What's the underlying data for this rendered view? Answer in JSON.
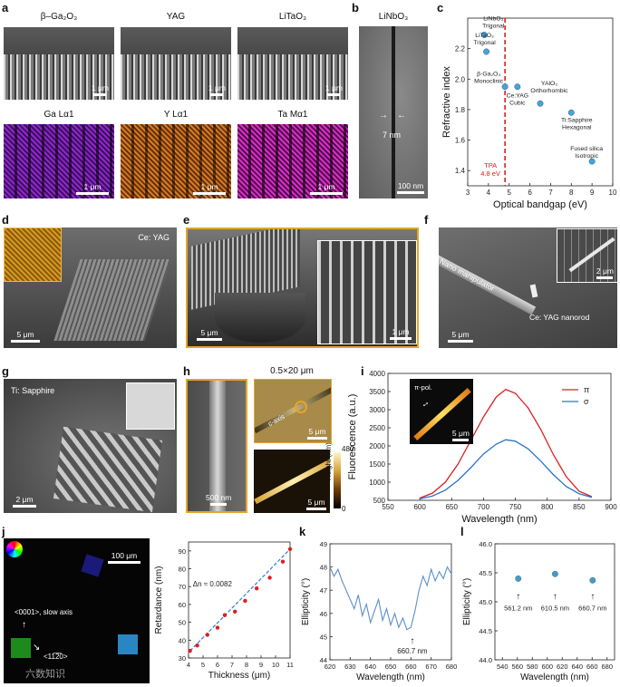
{
  "panel_labels": {
    "a": "a",
    "b": "b",
    "c": "c",
    "d": "d",
    "e": "e",
    "f": "f",
    "g": "g",
    "h": "h",
    "i": "i",
    "j": "j",
    "k": "k",
    "l": "l"
  },
  "panel_a": {
    "titles": [
      "β–Ga₂O₃",
      "YAG",
      "LiTaO₃",
      "Ga Lα1",
      "Y Lα1",
      "Ta Mα1"
    ],
    "scalebar": "1 μm"
  },
  "panel_b": {
    "title": "LiNbO₃",
    "gap_label": "7 nm",
    "scalebar": "100 nm"
  },
  "panel_d": {
    "label": "Ce: YAG",
    "scalebar": "5 μm"
  },
  "panel_e": {
    "scalebar_main": "5 μm",
    "scalebar_inset": "1 μm"
  },
  "panel_f": {
    "manipulator": "Nano manipulator",
    "nanorod": "Ce: YAG nanorod",
    "scalebar_main": "5 μm",
    "scalebar_inset": "2 μm"
  },
  "panel_g": {
    "label": "Ti: Sapphire",
    "scalebar": "2 μm"
  },
  "panel_h": {
    "size": "0.5×20 μm",
    "c_axis": "c-axis",
    "scalebar_sem": "500 nm",
    "scalebar_top": "5 μm",
    "scalebar_bottom": "5 μm",
    "colorbar_title": "Height (nm)",
    "colorbar_max": "480",
    "colorbar_min": "0"
  },
  "panel_i_inset": {
    "label": "π-pol.",
    "scalebar": "5 μm"
  },
  "panel_j_image": {
    "scalebar": "100 μm",
    "slow_axis": "<0001>, slow axis",
    "perp_axis": "<11̅2̅0>"
  },
  "watermark": "六数知识",
  "chart_data": [
    {
      "type": "scatter",
      "panel": "c",
      "xlabel": "Optical bandgap (eV)",
      "ylabel": "Refractive index",
      "xlim": [
        3,
        10
      ],
      "ylim": [
        1.3,
        2.4
      ],
      "xticks": [
        "3",
        "4",
        "5",
        "6",
        "7",
        "8",
        "9",
        "10"
      ],
      "yticks": [
        "1.4",
        "1.6",
        "1.8",
        "2.0",
        "2.2"
      ],
      "points": [
        {
          "x": 3.8,
          "y": 2.29,
          "label": "LiNbO₃ Trigonal"
        },
        {
          "x": 3.9,
          "y": 2.18,
          "label": "LiTaO₃ Trigonal"
        },
        {
          "x": 4.8,
          "y": 1.95,
          "label": "β-Ga₂O₃ Monoclinic"
        },
        {
          "x": 5.4,
          "y": 1.95,
          "label": "Ce:YAG Cubic"
        },
        {
          "x": 6.5,
          "y": 1.84,
          "label": "YAlO₃ Orthorhombic"
        },
        {
          "x": 8.0,
          "y": 1.78,
          "label": "Ti:Sapphire Hexagonal"
        },
        {
          "x": 9.0,
          "y": 1.46,
          "label": "Fused silica Isotropic"
        }
      ],
      "threshold": {
        "x": 4.8,
        "label": "TPA 4.8 eV"
      },
      "colors": {
        "point": "#4aa3d6",
        "threshold": "#d9201f"
      }
    },
    {
      "type": "line",
      "panel": "i",
      "xlabel": "Wavelength (nm)",
      "ylabel": "Fluorescence (a.u.)",
      "xlim": [
        550,
        900
      ],
      "ylim": [
        500,
        4000
      ],
      "xticks": [
        "550",
        "600",
        "650",
        "700",
        "750",
        "800",
        "850",
        "900"
      ],
      "yticks": [
        "500",
        "1000",
        "1500",
        "2000",
        "2500",
        "3000",
        "3500",
        "4000"
      ],
      "x": [
        600,
        620,
        640,
        660,
        680,
        700,
        720,
        735,
        750,
        770,
        790,
        810,
        830,
        850,
        870
      ],
      "series": [
        {
          "name": "π",
          "values": [
            560,
            700,
            1000,
            1500,
            2150,
            2800,
            3350,
            3560,
            3450,
            3050,
            2450,
            1750,
            1150,
            750,
            600
          ],
          "color": "#d9201f"
        },
        {
          "name": "σ",
          "values": [
            540,
            620,
            780,
            1050,
            1400,
            1780,
            2050,
            2170,
            2130,
            1920,
            1580,
            1200,
            880,
            680,
            580
          ],
          "color": "#2c73c9"
        }
      ]
    },
    {
      "type": "scatter",
      "panel": "j",
      "xlabel": "Thickness (μm)",
      "ylabel": "Retardance (nm)",
      "xlim": [
        4,
        11
      ],
      "ylim": [
        30,
        95
      ],
      "xticks": [
        "4",
        "5",
        "6",
        "7",
        "8",
        "9",
        "10",
        "11"
      ],
      "yticks": [
        "30",
        "40",
        "50",
        "60",
        "70",
        "80",
        "90"
      ],
      "x": [
        4.1,
        4.6,
        5.3,
        6.0,
        6.5,
        7.2,
        7.9,
        8.7,
        9.6,
        10.5,
        11.0
      ],
      "values": [
        34,
        37,
        43,
        47,
        54,
        56,
        62,
        69,
        75,
        84,
        91
      ],
      "annotation": "Δn ≈ 0.0082",
      "colors": {
        "point": "#d9201f",
        "fit": "#3a7bd5"
      }
    },
    {
      "type": "line",
      "panel": "k",
      "xlabel": "Wavelength (nm)",
      "ylabel": "Ellipticity (°)",
      "xlim": [
        620,
        680
      ],
      "ylim": [
        44,
        49
      ],
      "xticks": [
        "620",
        "630",
        "640",
        "650",
        "660",
        "670",
        "680"
      ],
      "yticks": [
        "44",
        "45",
        "46",
        "47",
        "48",
        "49"
      ],
      "x": [
        620,
        622,
        624,
        626,
        628,
        630,
        632,
        634,
        636,
        638,
        640,
        642,
        644,
        646,
        648,
        650,
        652,
        654,
        656,
        658,
        660,
        662,
        664,
        666,
        668,
        670,
        672,
        674,
        676,
        678,
        680
      ],
      "values": [
        48.0,
        47.6,
        47.9,
        47.4,
        47.0,
        46.6,
        46.2,
        46.8,
        45.9,
        46.4,
        45.6,
        46.1,
        46.6,
        45.7,
        46.2,
        45.5,
        46.0,
        45.4,
        45.8,
        45.3,
        45.4,
        46.1,
        47.0,
        47.6,
        47.2,
        47.9,
        47.4,
        47.8,
        47.5,
        48.0,
        47.7
      ],
      "annotation": "660.7 nm",
      "colors": {
        "line": "#5b8fc8"
      }
    },
    {
      "type": "scatter",
      "panel": "l",
      "xlabel": "Wavelength (nm)",
      "ylabel": "Ellipticity (°)",
      "xlim": [
        530,
        690
      ],
      "ylim": [
        44,
        46
      ],
      "xticks": [
        "540",
        "560",
        "580",
        "600",
        "620",
        "640",
        "660",
        "680"
      ],
      "yticks": [
        "44.0",
        "44.5",
        "45.0",
        "45.5",
        "46.0"
      ],
      "x": [
        561.2,
        610.5,
        660.7
      ],
      "values": [
        45.4,
        45.48,
        45.37
      ],
      "labels": [
        "561.2 nm",
        "610.5 nm",
        "660.7 nm"
      ],
      "colors": {
        "point": "#4a9bc4"
      }
    }
  ]
}
